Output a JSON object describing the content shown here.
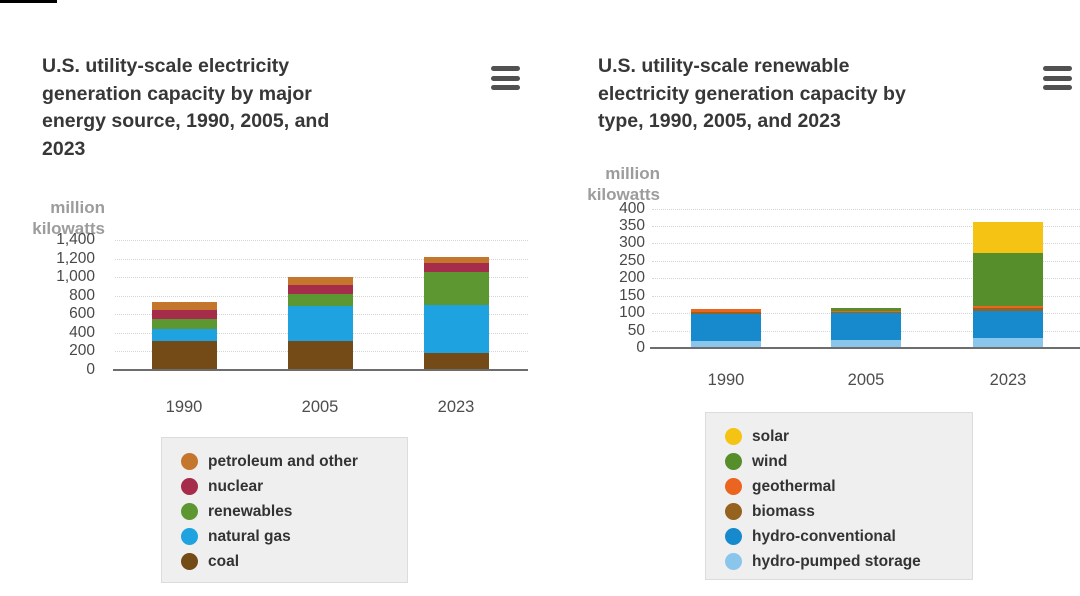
{
  "ui": {
    "context_menu_icon": "hamburger-menu-icon",
    "background_color": "#ffffff",
    "legend_background": "#efefef"
  },
  "chart_data": [
    {
      "type": "bar",
      "stacked": true,
      "title": "U.S. utility-scale electricity\ngeneration capacity by major\nenergy source, 1990, 2005, and\n2023",
      "ylabel": "million\nkilowatts",
      "xlabel": "",
      "categories": [
        "1990",
        "2005",
        "2023"
      ],
      "ylim": [
        0,
        1400
      ],
      "grid": true,
      "legend_position": "bottom",
      "legend_reversed": true,
      "y_ticks": [
        {
          "value": 0,
          "label": "0"
        },
        {
          "value": 200,
          "label": "200"
        },
        {
          "value": 400,
          "label": "400"
        },
        {
          "value": 600,
          "label": "600"
        },
        {
          "value": 800,
          "label": "800"
        },
        {
          "value": 1000,
          "label": "1,000"
        },
        {
          "value": 1200,
          "label": "1,200"
        },
        {
          "value": 1400,
          "label": "1,400"
        }
      ],
      "series": [
        {
          "name": "coal",
          "color": "#744a16",
          "values": [
            300,
            300,
            170
          ]
        },
        {
          "name": "natural gas",
          "color": "#1ea3e0",
          "values": [
            135,
            383,
            520
          ]
        },
        {
          "name": "renewables",
          "color": "#5d9732",
          "values": [
            105,
            124,
            350
          ]
        },
        {
          "name": "nuclear",
          "color": "#a52c4a",
          "values": [
            98,
            100,
            97
          ]
        },
        {
          "name": "petroleum and other",
          "color": "#c4762c",
          "values": [
            88,
            80,
            70
          ]
        }
      ]
    },
    {
      "type": "bar",
      "stacked": true,
      "title": "U.S. utility-scale renewable\nelectricity generation capacity by\ntype, 1990, 2005, and 2023",
      "ylabel": "million\nkilowatts",
      "xlabel": "",
      "categories": [
        "1990",
        "2005",
        "2023"
      ],
      "ylim": [
        0,
        400
      ],
      "grid": true,
      "legend_position": "bottom",
      "legend_reversed": true,
      "y_ticks": [
        {
          "value": 0,
          "label": "0"
        },
        {
          "value": 50,
          "label": "50"
        },
        {
          "value": 100,
          "label": "100"
        },
        {
          "value": 150,
          "label": "150"
        },
        {
          "value": 200,
          "label": "200"
        },
        {
          "value": 250,
          "label": "250"
        },
        {
          "value": 300,
          "label": "300"
        },
        {
          "value": 350,
          "label": "350"
        },
        {
          "value": 400,
          "label": "400"
        }
      ],
      "series": [
        {
          "name": "hydro-pumped storage",
          "color": "#8ac6ec",
          "values": [
            18,
            21,
            25
          ]
        },
        {
          "name": "hydro-conventional",
          "color": "#168acd",
          "values": [
            78,
            77,
            78
          ]
        },
        {
          "name": "biomass",
          "color": "#96621f",
          "values": [
            3,
            3,
            8
          ]
        },
        {
          "name": "geothermal",
          "color": "#eb6420",
          "values": [
            11,
            2,
            6
          ]
        },
        {
          "name": "wind",
          "color": "#568e2b",
          "values": [
            0,
            10,
            152
          ]
        },
        {
          "name": "solar",
          "color": "#f5c313",
          "values": [
            0,
            0,
            90
          ]
        }
      ]
    }
  ]
}
